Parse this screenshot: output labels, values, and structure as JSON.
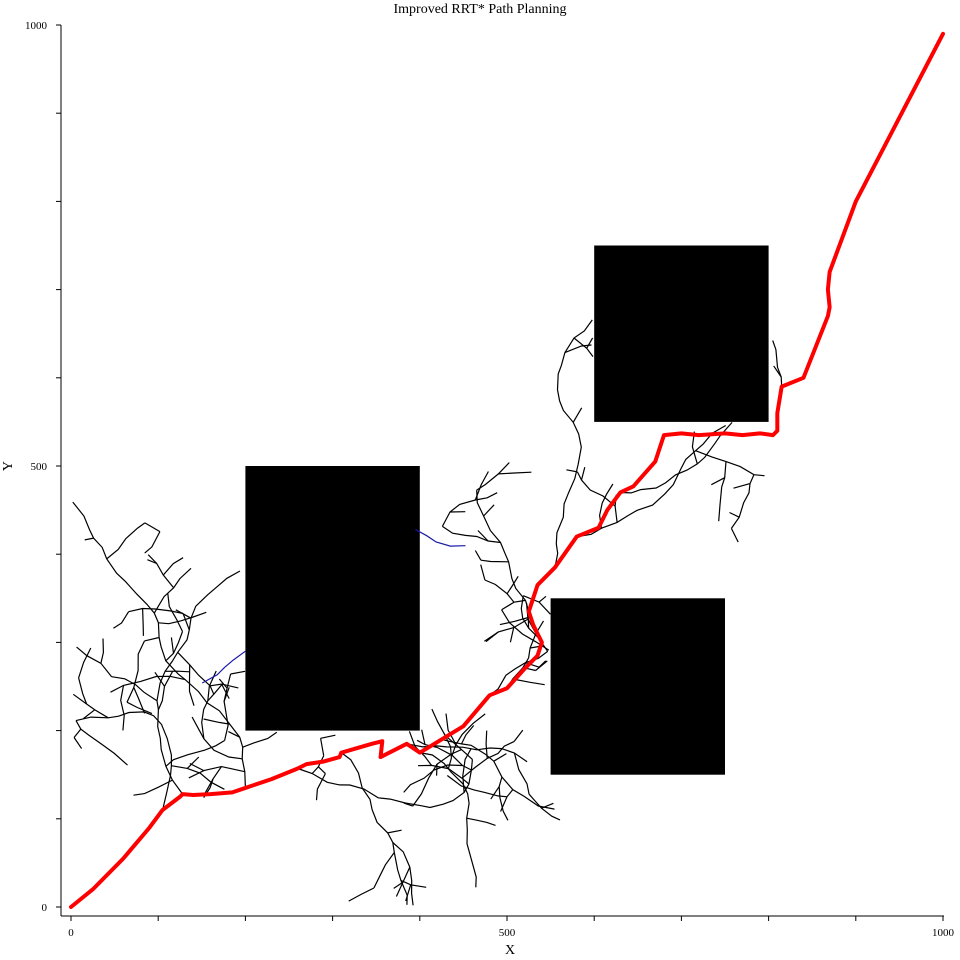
{
  "chart_data": {
    "type": "line",
    "title": "Improved RRT* Path Planning",
    "xlabel": "X",
    "ylabel": "Y",
    "xlim": [
      0,
      1000
    ],
    "ylim": [
      0,
      1000
    ],
    "x_ticks": [
      0,
      500,
      1000
    ],
    "y_ticks": [
      0,
      500,
      1000
    ],
    "x_tick_labels": [
      "0",
      "500",
      "1000"
    ],
    "y_tick_labels": [
      "0",
      "500",
      "1000"
    ],
    "minor_tick_step": 100,
    "grid": false,
    "colors": {
      "path": "#ff0000",
      "tree": "#000000",
      "tree_alt": "#1a1aa8",
      "obstacle": "#000000"
    },
    "obstacles": [
      {
        "x": [
          200,
          400
        ],
        "y": [
          200,
          500
        ]
      },
      {
        "x": [
          600,
          800
        ],
        "y": [
          550,
          750
        ]
      },
      {
        "x": [
          550,
          750
        ],
        "y": [
          150,
          350
        ]
      }
    ],
    "path": {
      "x": [
        0,
        25,
        60,
        90,
        105,
        125,
        128,
        140,
        160,
        185,
        200,
        230,
        260,
        270,
        290,
        308,
        310,
        345,
        357,
        355,
        385,
        400,
        425,
        450,
        480,
        500,
        520,
        535,
        540,
        530,
        525,
        535,
        555,
        580,
        605,
        615,
        630,
        645,
        670,
        680,
        700,
        720,
        750,
        770,
        790,
        805,
        810,
        810,
        815,
        840,
        868,
        870,
        868,
        870,
        900,
        1000
      ],
      "y": [
        0,
        20,
        55,
        90,
        110,
        125,
        128,
        127,
        128,
        130,
        135,
        145,
        157,
        162,
        165,
        170,
        175,
        185,
        188,
        170,
        185,
        175,
        190,
        205,
        240,
        248,
        270,
        285,
        300,
        320,
        335,
        365,
        385,
        420,
        430,
        450,
        470,
        477,
        505,
        535,
        537,
        535,
        537,
        535,
        537,
        535,
        540,
        560,
        590,
        600,
        670,
        680,
        700,
        720,
        800,
        990
      ]
    },
    "tree_branch_count": 140
  }
}
